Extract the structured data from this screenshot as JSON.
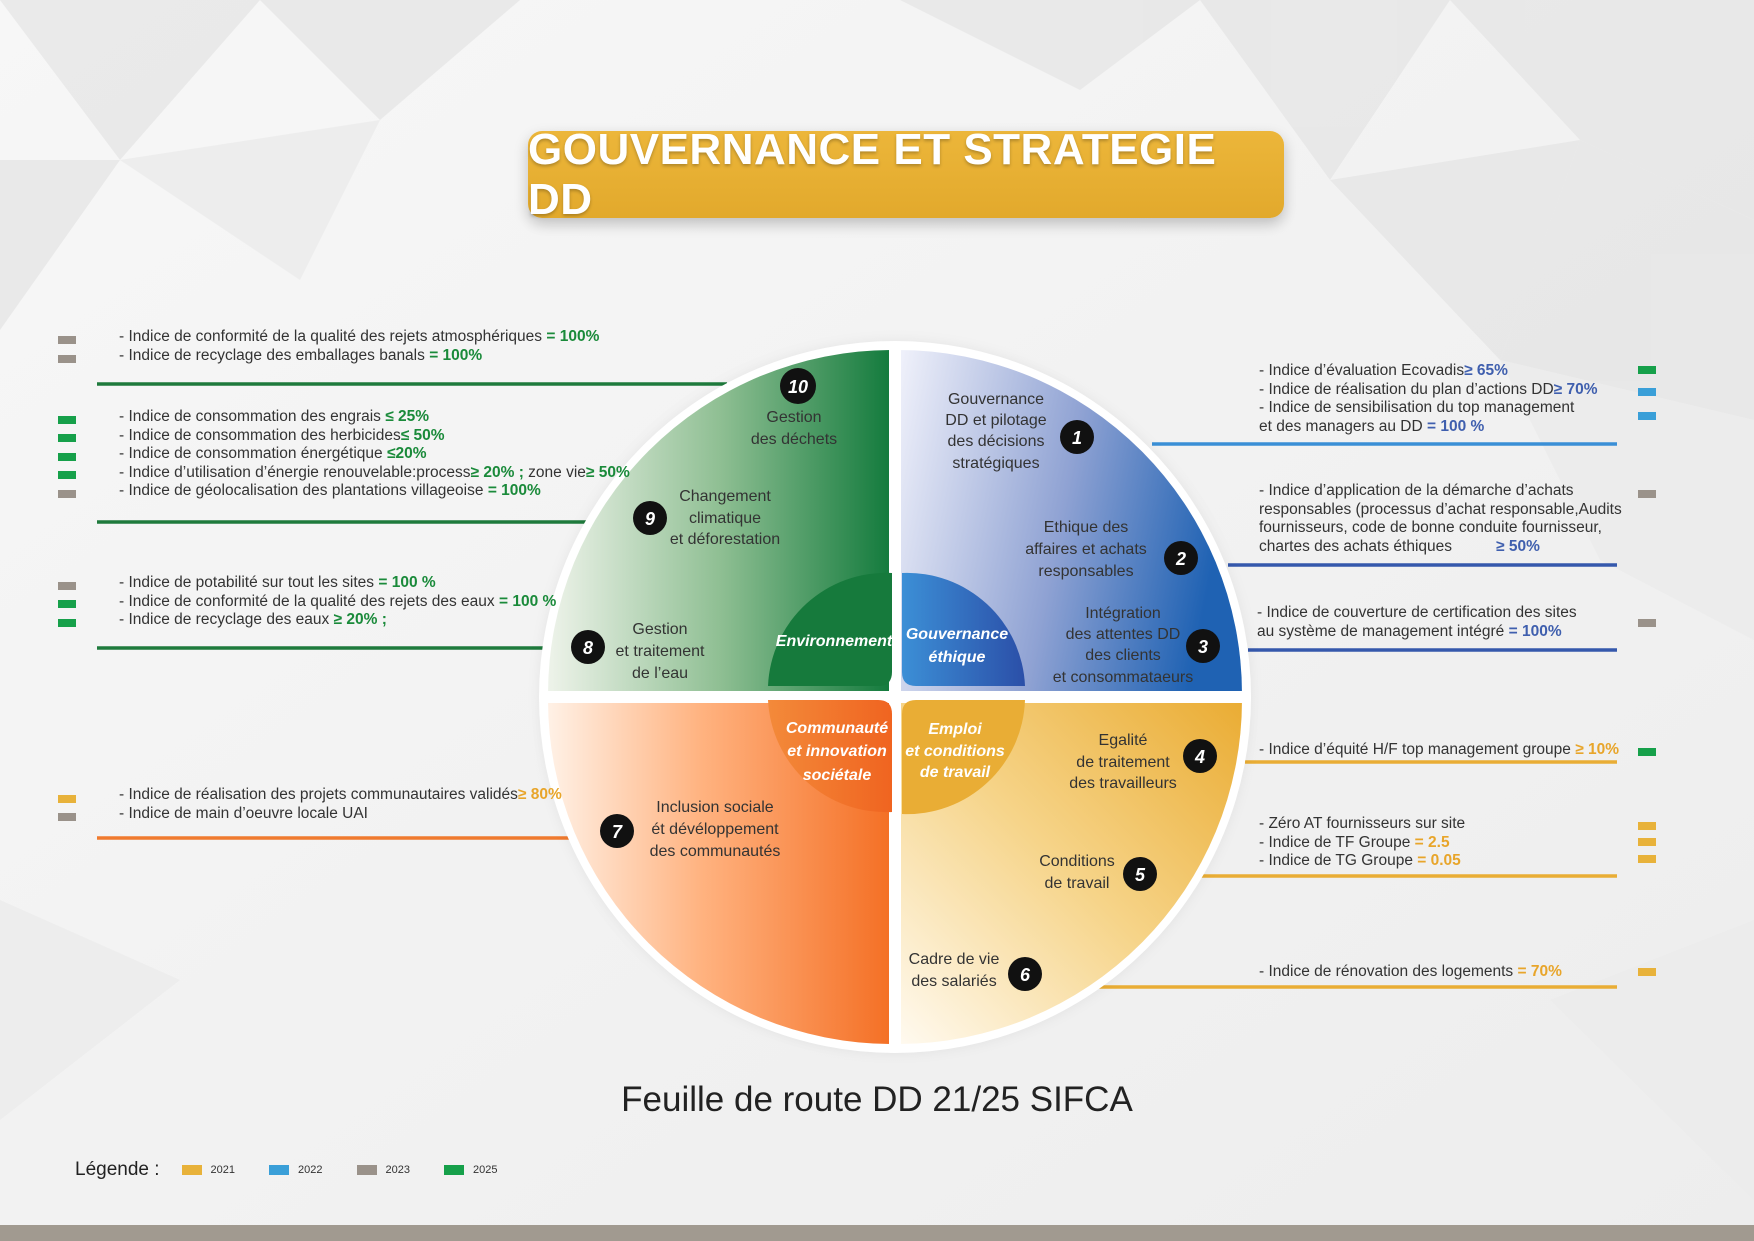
{
  "title": "GOUVERNANCE ET STRATEGIE DD",
  "subtitle": "Feuille de route DD 21/25 SIFCA",
  "colors": {
    "y2021": "#e8b23a",
    "y2022": "#3a9fd8",
    "y2023": "#9a928a",
    "y2025": "#16a04a",
    "environment": "#1a7a3a",
    "governance": "#2f5fae",
    "community": "#f07a2e",
    "employment": "#e9ad35"
  },
  "legend": {
    "label": "Légende :",
    "items": [
      {
        "year": "2021",
        "color": "#e8b23a"
      },
      {
        "year": "2022",
        "color": "#3a9fd8"
      },
      {
        "year": "2023",
        "color": "#9a928a"
      },
      {
        "year": "2025",
        "color": "#16a04a"
      }
    ]
  },
  "quadrants": {
    "environment": "Environnement",
    "governance": [
      "Gouvernance",
      "éthique"
    ],
    "community": [
      "Communauté",
      "et innovation",
      "sociétale"
    ],
    "employment": [
      "Emploi",
      "et conditions",
      "de travail"
    ]
  },
  "themes": [
    {
      "num": "1",
      "lines": [
        "Gouvernance",
        "DD et pilotage",
        "des décisions",
        "stratégiques"
      ]
    },
    {
      "num": "2",
      "lines": [
        "Ethique des",
        "affaires et achats",
        "responsables"
      ]
    },
    {
      "num": "3",
      "lines": [
        "Intégration",
        "des attentes DD",
        "des clients",
        "et consommataeurs"
      ]
    },
    {
      "num": "4",
      "lines": [
        "Egalité",
        "de traitement",
        "des travailleurs"
      ]
    },
    {
      "num": "5",
      "lines": [
        "Conditions",
        "de travail"
      ]
    },
    {
      "num": "6",
      "lines": [
        "Cadre de vie",
        "des salariés"
      ]
    },
    {
      "num": "7",
      "lines": [
        "Inclusion sociale",
        "ét dévéloppement",
        "des communautés"
      ]
    },
    {
      "num": "8",
      "lines": [
        "Gestion",
        "et traitement",
        "de l’eau"
      ]
    },
    {
      "num": "9",
      "lines": [
        "Changement",
        "climatique",
        "et déforestation"
      ]
    },
    {
      "num": "10",
      "lines": [
        "Gestion",
        "des déchets"
      ]
    }
  ],
  "indicators": {
    "g10": [
      {
        "text": "- Indice de conformité de la qualité des rejets atmosphériques",
        "value": "= 100%"
      },
      {
        "text": "- Indice de recyclage des emballages banals",
        "value": "= 100%"
      }
    ],
    "g9": [
      {
        "text": "- Indice de consommation des engrais",
        "value": "≤ 25%"
      },
      {
        "text": "- Indice de consommation des herbicides",
        "value": "≤ 50%"
      },
      {
        "text": "- Indice de consommation énergétique",
        "value": "≤20%"
      },
      {
        "text": "- Indice d’utilisation d’énergie renouvelable:process",
        "value": "≥ 20% ;",
        "text2": "zone vie",
        "value2": "≥ 50%"
      },
      {
        "text": "- Indice de géolocalisation des plantations villageoise",
        "value": "= 100%"
      }
    ],
    "g8": [
      {
        "text": "- Indice de potabilité sur tout les sites",
        "value": "= 100 %"
      },
      {
        "text": "- Indice de conformité de la qualité des rejets des eaux",
        "value": "= 100 %"
      },
      {
        "text": "- Indice de recyclage des eaux",
        "value": "≥ 20% ;"
      }
    ],
    "g7": [
      {
        "text": "- Indice de réalisation des projets communautaires validés",
        "value": "≥ 80%"
      },
      {
        "text": "- Indice de main d’oeuvre locale UAI",
        "value": ""
      }
    ],
    "g1": [
      {
        "text": "- Indice d’évaluation Ecovadis",
        "value": "≥ 65%"
      },
      {
        "text": "- Indice de réalisation du plan d’actions DD",
        "value": "≥ 70%"
      },
      {
        "text": "- Indice de sensibilisation du top management",
        "value": ""
      },
      {
        "text": "  et des managers au DD",
        "value": "= 100 %"
      }
    ],
    "g2": [
      {
        "text": "- Indice d’application de la démarche d’achats",
        "value": ""
      },
      {
        "text": "responsables (processus d’achat responsable,Audits",
        "value": ""
      },
      {
        "text": "fournisseurs, code de bonne conduite fournisseur,",
        "value": ""
      },
      {
        "text": "chartes des achats éthiques",
        "value": "≥ 50%"
      }
    ],
    "g3": [
      {
        "text": "- Indice de couverture de certification des sites",
        "value": ""
      },
      {
        "text": "  au système de management intégré",
        "value": "= 100%"
      }
    ],
    "g4": [
      {
        "text": "- Indice d’équité H/F top management groupe",
        "value": "≥ 10%"
      }
    ],
    "g5": [
      {
        "text": "- Zéro AT fournisseurs sur site",
        "value": ""
      },
      {
        "text": "- Indice de TF Groupe",
        "value": "= 2.5"
      },
      {
        "text": "- Indice de TG Groupe",
        "value": "= 0.05"
      }
    ],
    "g6": [
      {
        "text": "- Indice de rénovation des logements",
        "value": "= 70%"
      }
    ]
  }
}
